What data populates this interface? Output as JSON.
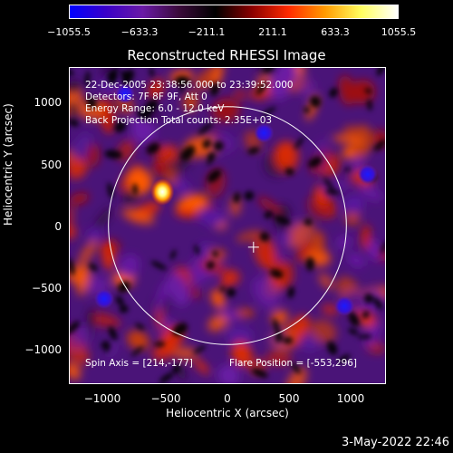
{
  "colorbar": {
    "ticks": [
      "−1055.5",
      "−633.3",
      "−211.1",
      "211.1",
      "633.3",
      "1055.5"
    ],
    "colors": [
      "#0000ff",
      "#3a00c8",
      "#6a1aa6",
      "#3a0a3a",
      "#000000",
      "#8a0000",
      "#ff2a00",
      "#ff9a00",
      "#ffff60",
      "#ffffff"
    ]
  },
  "plot": {
    "title": "Reconstructed RHESSI Image",
    "x_title": "Heliocentric X (arcsec)",
    "y_title": "Heliocentric Y (arcsec)",
    "x_ticks": [
      "−1000",
      "−500",
      "0",
      "500",
      "1000"
    ],
    "y_ticks": [
      "1000",
      "500",
      "0",
      "−500",
      "−1000"
    ]
  },
  "header": {
    "line1": "22-Dec-2005 23:38:56.000 to 23:39:52.000",
    "line2": "Detectors: 7F 8F 9F, Att 0",
    "line3": "Energy Range: 6.0 - 12.0 keV",
    "line4": "Back Projection     Total counts: 2.35E+03"
  },
  "footer": {
    "spin_axis": "Spin Axis = [214,-177]",
    "flare_position": "Flare Position = [-553,296]"
  },
  "date_stamp": "3-May-2022 22:46",
  "chart_data": {
    "type": "heatmap",
    "title": "Reconstructed RHESSI Image",
    "xlabel": "Heliocentric X (arcsec)",
    "ylabel": "Heliocentric Y (arcsec)",
    "xlim": [
      -1300,
      1300
    ],
    "ylim": [
      -1300,
      1300
    ],
    "color_range": [
      -1055.5,
      1055.5
    ],
    "solar_limb_radius": 975,
    "spin_axis": [
      214,
      -177
    ],
    "flare_position": [
      -553,
      296
    ]
  }
}
